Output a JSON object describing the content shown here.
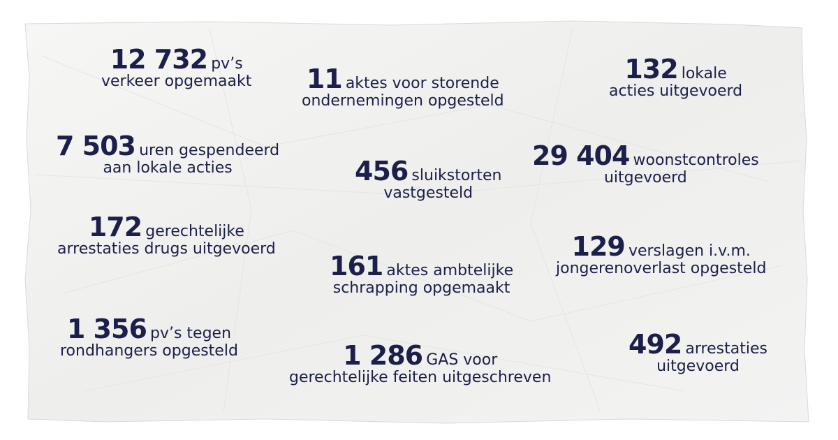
{
  "stats": [
    {
      "number": "12 732",
      "text1": "pv’s",
      "text2": "verkeer opgemaakt"
    },
    {
      "number": "11",
      "text1": "aktes voor storende",
      "text2": "ondernemingen opgesteld"
    },
    {
      "number": "132",
      "text1": "lokale",
      "text2": "acties uitgevoerd"
    },
    {
      "number": "7 503",
      "text1": "uren gespendeerd",
      "text2": "aan lokale acties"
    },
    {
      "number": "456",
      "text1": "sluikstorten",
      "text2": "vastgesteld"
    },
    {
      "number": "29 404",
      "text1": "woonstcontroles",
      "text2": "uitgevoerd"
    },
    {
      "number": "172",
      "text1": "gerechtelijke",
      "text2": "arrestaties drugs uitgevoerd"
    },
    {
      "number": "161",
      "text1": "aktes ambtelijke",
      "text2": "schrapping opgemaakt"
    },
    {
      "number": "129",
      "text1": "verslagen i.v.m.",
      "text2": "jongerenoverlast opgesteld"
    },
    {
      "number": "1 356",
      "text1": "pv’s tegen",
      "text2": "rondhangers opgesteld"
    },
    {
      "number": "1 286",
      "text1": "GAS voor",
      "text2": "gerechtelijke feiten uitgeschreven"
    },
    {
      "number": "492",
      "text1": "arrestaties",
      "text2": "uitgevoerd"
    }
  ],
  "colors": {
    "text": "#1c1f4a",
    "paper": "#f2f2f1",
    "background": "#ffffff"
  }
}
